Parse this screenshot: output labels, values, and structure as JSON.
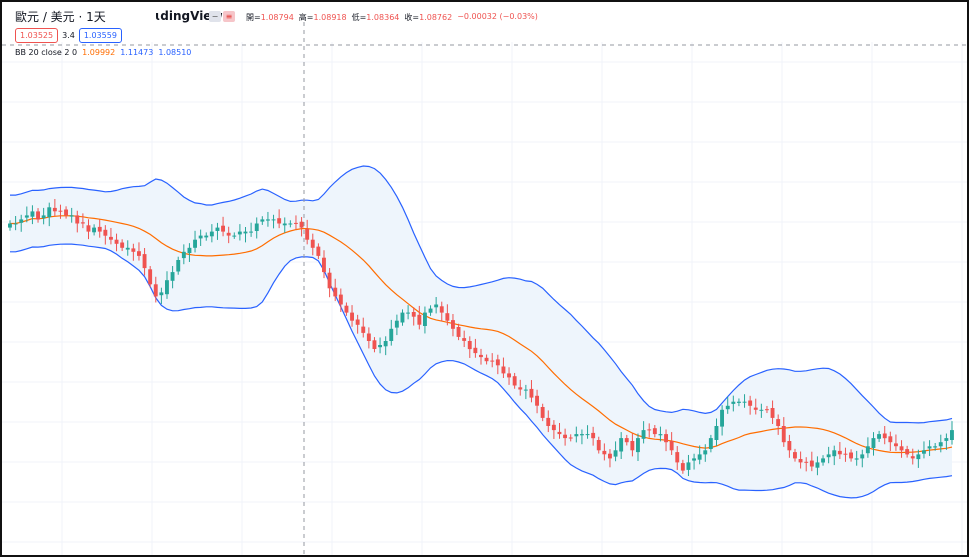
{
  "header": {
    "symbol_title": "歐元 / 美元 · 1天",
    "brand": "ɩdingView",
    "minus_icon": "minus-icon",
    "equal_icon": "equal-icon"
  },
  "ohlc": {
    "open_label": "開=",
    "open_value": "1.08794",
    "high_label": "高=",
    "high_value": "1.08918",
    "low_label": "低=",
    "low_value": "1.08364",
    "close_label": "收=",
    "close_value": "1.08762",
    "change": "−0.00032 (−0.03%)"
  },
  "quote": {
    "sell": "1.03525",
    "spread": "3.4",
    "buy": "1.03559"
  },
  "indicator": {
    "label": "BB 20 close 2 0",
    "basis": "1.09992",
    "upper": "1.11473",
    "lower": "1.08510"
  },
  "colors": {
    "up": "#26a69a",
    "down": "#ef5350",
    "basis": "#ff6d00",
    "band": "#2962ff",
    "band_fill": "#eef5fc",
    "grid": "#f0f3fa",
    "crosshair": "#9598a1"
  },
  "chart_data": {
    "type": "candlestick",
    "interval": "1D",
    "ylim": [
      0,
      100
    ],
    "grid": true,
    "indicator": "Bollinger Bands (20, close, 2)",
    "closes": [
      70,
      70,
      71,
      72,
      73,
      71,
      72,
      74,
      73,
      73,
      72,
      72,
      70,
      70,
      68,
      69,
      68,
      67,
      66,
      65,
      64,
      64,
      63,
      62,
      59,
      55,
      52,
      53,
      56,
      58,
      61,
      63,
      64,
      66,
      67,
      67,
      68,
      69,
      68,
      67,
      67,
      68,
      68,
      68,
      70,
      71,
      71,
      71,
      70,
      70,
      70,
      70,
      69,
      66,
      64,
      62,
      58,
      54,
      52,
      50,
      48,
      46,
      45,
      43,
      41,
      39,
      40,
      41,
      44,
      46,
      48,
      48,
      47,
      45,
      48,
      49,
      50,
      48,
      46,
      44,
      42,
      41,
      39,
      38,
      37,
      36,
      36,
      35,
      33,
      32,
      30,
      29,
      29,
      27,
      25,
      22,
      20,
      19,
      18,
      17,
      17,
      18,
      18,
      18,
      17,
      14,
      13,
      12,
      14,
      17,
      16,
      14,
      17,
      19,
      19,
      18,
      18,
      16,
      14,
      11,
      9,
      11,
      12,
      13,
      14,
      17,
      20,
      24,
      25,
      26,
      26,
      26,
      25,
      24,
      24,
      24,
      22,
      20,
      16,
      14,
      12,
      11,
      11,
      10,
      11,
      12,
      13,
      14,
      13,
      13,
      12,
      12,
      13,
      15,
      17,
      18,
      17,
      16,
      15,
      14,
      13,
      12,
      13,
      14,
      15,
      15,
      16,
      17,
      19
    ]
  }
}
